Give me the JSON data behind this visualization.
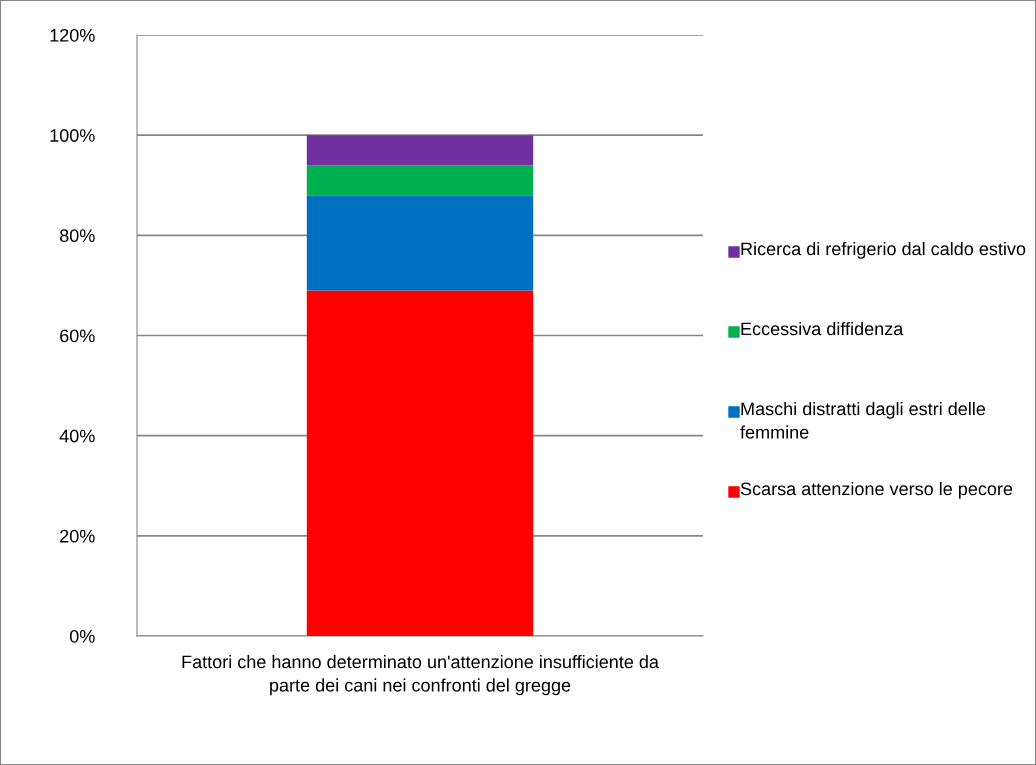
{
  "chart_data": {
    "type": "bar",
    "stacked": true,
    "categories": [
      "Fattori che hanno determinato un'attenzione insufficiente da parte dei cani nei confronti del gregge"
    ],
    "series": [
      {
        "name": "Scarsa attenzione verso le pecore",
        "color": "#ff0000",
        "values": [
          69
        ]
      },
      {
        "name": "Maschi distratti dagli estri delle femmine",
        "color": "#0070c0",
        "values": [
          19
        ]
      },
      {
        "name": "Eccessiva diffidenza",
        "color": "#00b050",
        "values": [
          6
        ]
      },
      {
        "name": "Ricerca di refrigerio dal caldo estivo",
        "color": "#7030a0",
        "values": [
          6
        ]
      }
    ],
    "ylim": [
      0,
      120
    ],
    "yticks": [
      {
        "value": 0,
        "label": "0%"
      },
      {
        "value": 20,
        "label": "20%"
      },
      {
        "value": 40,
        "label": "40%"
      },
      {
        "value": 60,
        "label": "60%"
      },
      {
        "value": 80,
        "label": "80%"
      },
      {
        "value": 100,
        "label": "100%"
      },
      {
        "value": 120,
        "label": "120%"
      }
    ],
    "grid": "y",
    "legend": "right"
  }
}
